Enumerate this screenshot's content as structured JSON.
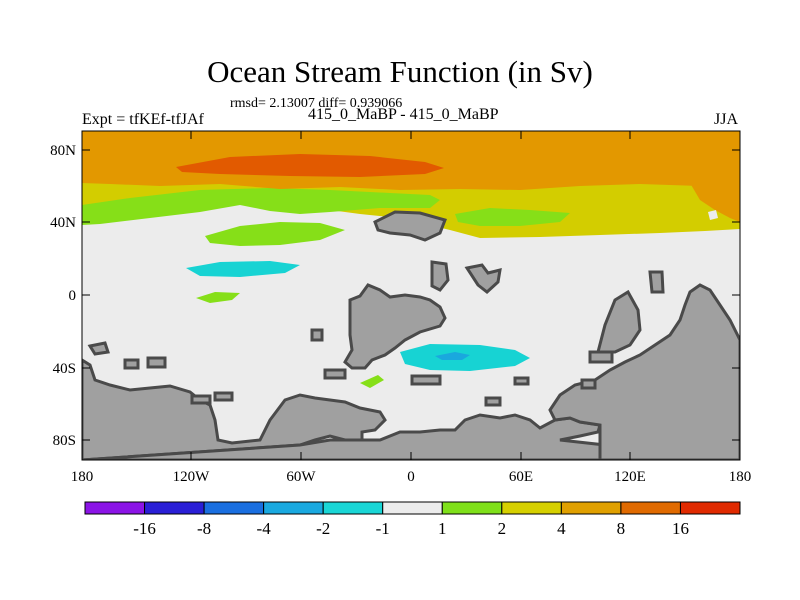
{
  "title": "Ocean Stream Function (in Sv)",
  "stats": "rmsd= 2.13007 diff= 0.939066",
  "left_label": "Expt = tfKEf-tfJAf",
  "center_label": "415_0_MaBP - 415_0_MaBP",
  "right_label": "JJA",
  "lat_ticks": [
    "80N",
    "40N",
    "0",
    "40S",
    "80S"
  ],
  "lon_ticks": [
    "180",
    "120W",
    "60W",
    "0",
    "60E",
    "120E",
    "180"
  ],
  "colorbar": {
    "labels": [
      "-16",
      "-8",
      "-4",
      "-2",
      "-1",
      "1",
      "2",
      "4",
      "8",
      "16"
    ],
    "colors": [
      "#8b14e6",
      "#2a1fd6",
      "#1a6fe0",
      "#1aa9e0",
      "#1ad6d6",
      "#ececec",
      "#7fe01a",
      "#d6d000",
      "#e0a000",
      "#e06a00",
      "#e02a00"
    ]
  },
  "colors": {
    "land": "#a0a0a0",
    "land_edge": "#4a4a4a",
    "neutral": "#ececec",
    "orange": "#e39800",
    "dark_orange": "#e25a00",
    "yellow": "#d3cd00",
    "green": "#86df18",
    "cyan": "#17d3d3",
    "light_blue": "#1aa8de"
  }
}
